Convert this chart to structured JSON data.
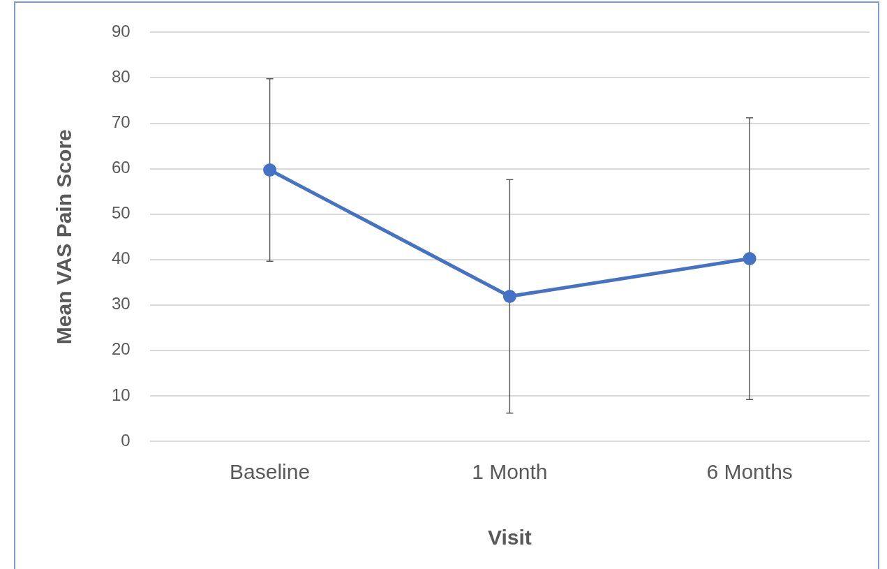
{
  "chart_data": {
    "type": "line",
    "xlabel": "Visit",
    "ylabel": "Mean VAS Pain Score",
    "categories": [
      "Baseline",
      "1 Month",
      "6 Months"
    ],
    "series": [
      {
        "color": "#4472c4",
        "values": [
          59.7,
          31.9,
          40.2
        ],
        "errors": [
          20.1,
          25.7,
          31
        ]
      }
    ],
    "ylim": [
      0,
      90
    ],
    "yticks": [
      0,
      10,
      20,
      30,
      40,
      50,
      60,
      70,
      80,
      90
    ],
    "grid": "y",
    "legend": false,
    "marker": "circle",
    "line_style": "solid"
  }
}
